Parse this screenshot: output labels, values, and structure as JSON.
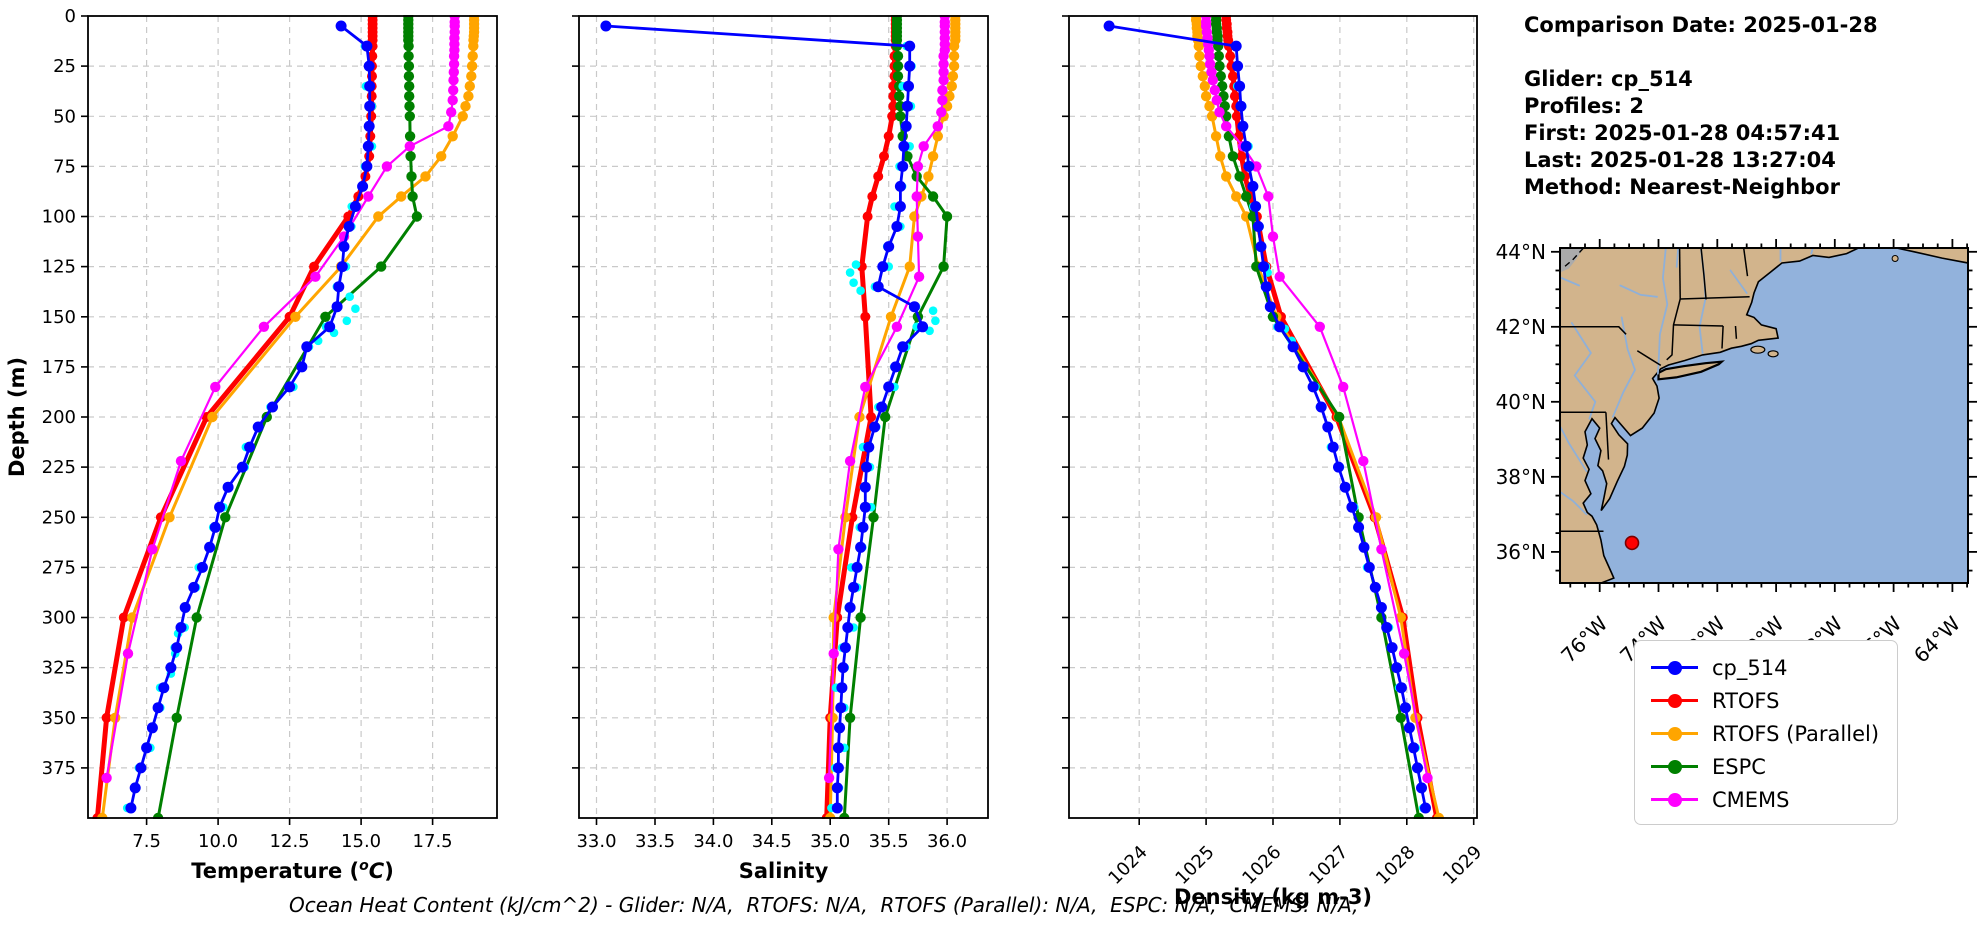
{
  "info_panel": {
    "lines": [
      "Comparison Date: 2025-01-28",
      "",
      "Glider: cp_514",
      "Profiles: 2",
      "First: 2025-01-28 04:57:41",
      "Last: 2025-01-28 13:27:04",
      "Method: Nearest-Neighbor"
    ]
  },
  "legend": {
    "items": [
      {
        "label": "cp_514",
        "color": "#0000ff"
      },
      {
        "label": "RTOFS",
        "color": "#ff0000"
      },
      {
        "label": "RTOFS (Parallel)",
        "color": "#ffa500"
      },
      {
        "label": "ESPC",
        "color": "#008000"
      },
      {
        "label": "CMEMS",
        "color": "#ff00ff"
      }
    ]
  },
  "footer": {
    "text": "Ocean Heat Content (kJ/cm^2) - Glider: N/A,  RTOFS: N/A,  RTOFS (Parallel): N/A,  ESPC: N/A,  CMEMS: N/A,"
  },
  "map": {
    "lat_ticks": [
      {
        "value": 44,
        "label": "44°N"
      },
      {
        "value": 42,
        "label": "42°N"
      },
      {
        "value": 40,
        "label": "40°N"
      },
      {
        "value": 38,
        "label": "38°N"
      },
      {
        "value": 36,
        "label": "36°N"
      }
    ],
    "lon_ticks": [
      {
        "value": -76,
        "label": "76°W"
      },
      {
        "value": -74,
        "label": "74°W"
      },
      {
        "value": -72,
        "label": "72°W"
      },
      {
        "value": -70,
        "label": "70°W"
      },
      {
        "value": -68,
        "label": "68°W"
      },
      {
        "value": -66,
        "label": "66°W"
      },
      {
        "value": -64,
        "label": "64°W"
      }
    ],
    "marker": {
      "lon": -74.9,
      "lat": 36.24,
      "color": "#ff0000",
      "edge": "#7a0000"
    },
    "colors": {
      "ocean": "#92b2dc",
      "land": "#d2b48c",
      "lake_gray": "#ababab",
      "river": "#8fb0d8",
      "coast": "#000000"
    }
  },
  "chart_data": {
    "type": "line",
    "grid": true,
    "depth_axis": {
      "label": "Depth (m)",
      "lim": [
        0,
        400
      ],
      "ticks": [
        0,
        25,
        50,
        75,
        100,
        125,
        150,
        175,
        200,
        225,
        250,
        275,
        300,
        325,
        350,
        375
      ],
      "tick_labels": [
        "0",
        "25",
        "50",
        "75",
        "100",
        "125",
        "150",
        "175",
        "200",
        "225",
        "250",
        "275",
        "300",
        "325",
        "350",
        "375"
      ]
    },
    "panels": [
      {
        "key": "temperature",
        "xlabel": "Temperature (°C)",
        "xlabel_parts": {
          "pre": "Temperature (",
          "sup": "o",
          "italic": "C",
          "post": ")"
        },
        "xlim": [
          5.45,
          19.75
        ],
        "xticks": [
          7.5,
          10,
          12.5,
          15,
          17.5
        ],
        "xtick_labels": [
          "7.5",
          "10.0",
          "12.5",
          "15.0",
          "17.5"
        ]
      },
      {
        "key": "salinity",
        "xlabel": "Salinity",
        "xlim": [
          32.85,
          36.35
        ],
        "xticks": [
          33,
          33.5,
          34,
          34.5,
          35,
          35.5,
          36
        ],
        "xtick_labels": [
          "33.0",
          "33.5",
          "34.0",
          "34.5",
          "35.0",
          "35.5",
          "36.0"
        ]
      },
      {
        "key": "density",
        "xlabel": "Density (kg m-3)",
        "xlim": [
          1022.95,
          1029.05
        ],
        "xticks": [
          1024,
          1025,
          1026,
          1027,
          1028,
          1029
        ],
        "xtick_labels": [
          "1024",
          "1025",
          "1026",
          "1027",
          "1028",
          "1029"
        ],
        "rotate_xticklabels": 45
      }
    ],
    "series_order": [
      "RTOFS",
      "RTOFS (Parallel)",
      "ESPC",
      "CMEMS",
      "cp_514 raw profiles",
      "cp_514"
    ],
    "series": [
      {
        "name": "cp_514",
        "color": "#0000ff",
        "line_width": 2.8,
        "marker_size": 5.5,
        "depths": [
          5,
          15,
          25,
          35,
          45,
          55,
          65,
          75,
          85,
          95,
          105,
          115,
          125,
          135,
          145,
          155,
          165,
          175,
          185,
          195,
          205,
          215,
          225,
          235,
          245,
          255,
          265,
          275,
          285,
          295,
          305,
          315,
          325,
          335,
          345,
          355,
          365,
          375,
          385,
          395
        ],
        "temperature": [
          14.3,
          15.2,
          15.28,
          15.3,
          15.3,
          15.28,
          15.25,
          15.2,
          15.05,
          14.8,
          14.58,
          14.4,
          14.34,
          14.22,
          14.16,
          13.9,
          13.1,
          12.93,
          12.5,
          11.9,
          11.4,
          11.1,
          10.85,
          10.35,
          10.05,
          9.9,
          9.7,
          9.45,
          9.15,
          8.85,
          8.7,
          8.55,
          8.35,
          8.1,
          7.9,
          7.7,
          7.5,
          7.3,
          7.1,
          6.95
        ],
        "salinity": [
          33.08,
          35.68,
          35.68,
          35.67,
          35.66,
          35.65,
          35.63,
          35.62,
          35.6,
          35.6,
          35.57,
          35.5,
          35.45,
          35.41,
          35.72,
          35.79,
          35.62,
          35.56,
          35.5,
          35.44,
          35.38,
          35.33,
          35.31,
          35.3,
          35.3,
          35.28,
          35.26,
          35.23,
          35.2,
          35.17,
          35.15,
          35.13,
          35.11,
          35.1,
          35.09,
          35.08,
          35.07,
          35.07,
          35.06,
          35.06
        ],
        "density": [
          1023.55,
          1025.45,
          1025.47,
          1025.5,
          1025.52,
          1025.55,
          1025.6,
          1025.64,
          1025.7,
          1025.74,
          1025.78,
          1025.82,
          1025.86,
          1025.9,
          1025.96,
          1026.1,
          1026.3,
          1026.45,
          1026.6,
          1026.72,
          1026.82,
          1026.9,
          1026.98,
          1027.08,
          1027.18,
          1027.28,
          1027.36,
          1027.44,
          1027.53,
          1027.62,
          1027.7,
          1027.78,
          1027.85,
          1027.92,
          1027.98,
          1028.04,
          1028.1,
          1028.16,
          1028.22,
          1028.28
        ]
      },
      {
        "name": "RTOFS",
        "color": "#ff0000",
        "line_width": 5,
        "marker_size": 5,
        "depths": [
          0,
          2,
          4,
          6,
          8,
          10,
          12,
          15,
          20,
          25,
          30,
          35,
          40,
          45,
          50,
          60,
          70,
          80,
          90,
          100,
          125,
          150,
          200,
          250,
          300,
          350,
          400
        ],
        "temperature": [
          15.4,
          15.4,
          15.4,
          15.4,
          15.4,
          15.4,
          15.4,
          15.4,
          15.39,
          15.38,
          15.38,
          15.37,
          15.37,
          15.36,
          15.35,
          15.32,
          15.28,
          15.15,
          14.9,
          14.55,
          13.35,
          12.5,
          9.6,
          8.0,
          6.7,
          6.1,
          5.78
        ],
        "salinity": [
          35.56,
          35.56,
          35.56,
          35.56,
          35.56,
          35.56,
          35.56,
          35.56,
          35.55,
          35.55,
          35.55,
          35.54,
          35.54,
          35.54,
          35.53,
          35.5,
          35.46,
          35.41,
          35.36,
          35.32,
          35.27,
          35.3,
          35.35,
          35.19,
          35.06,
          35.0,
          34.97
        ],
        "density": [
          1025.3,
          1025.3,
          1025.31,
          1025.31,
          1025.32,
          1025.32,
          1025.33,
          1025.34,
          1025.36,
          1025.38,
          1025.4,
          1025.42,
          1025.43,
          1025.45,
          1025.46,
          1025.49,
          1025.53,
          1025.58,
          1025.66,
          1025.76,
          1025.9,
          1026.12,
          1026.95,
          1027.52,
          1027.94,
          1028.16,
          1028.45
        ]
      },
      {
        "name": "RTOFS (Parallel)",
        "color": "#ffa500",
        "line_width": 3,
        "marker_size": 5.2,
        "depths": [
          0,
          2,
          4,
          6,
          8,
          10,
          12,
          15,
          20,
          25,
          30,
          35,
          40,
          45,
          50,
          60,
          70,
          80,
          90,
          100,
          125,
          150,
          200,
          250,
          300,
          350,
          400
        ],
        "temperature": [
          18.95,
          18.95,
          18.95,
          18.95,
          18.95,
          18.94,
          18.93,
          18.92,
          18.9,
          18.88,
          18.85,
          18.8,
          18.75,
          18.65,
          18.55,
          18.2,
          17.8,
          17.25,
          16.4,
          15.6,
          14.3,
          12.7,
          9.8,
          8.3,
          7.0,
          6.4,
          5.95
        ],
        "salinity": [
          36.07,
          36.07,
          36.07,
          36.07,
          36.07,
          36.07,
          36.07,
          36.06,
          36.06,
          36.06,
          36.05,
          36.04,
          36.02,
          36.0,
          35.97,
          35.92,
          35.88,
          35.84,
          35.78,
          35.72,
          35.68,
          35.52,
          35.25,
          35.13,
          35.03,
          35.02,
          35.0
        ],
        "density": [
          1024.85,
          1024.85,
          1024.86,
          1024.86,
          1024.87,
          1024.87,
          1024.88,
          1024.89,
          1024.9,
          1024.92,
          1024.95,
          1024.98,
          1025.0,
          1025.05,
          1025.09,
          1025.15,
          1025.21,
          1025.3,
          1025.45,
          1025.6,
          1025.78,
          1026.05,
          1026.98,
          1027.54,
          1027.91,
          1028.13,
          1028.48
        ]
      },
      {
        "name": "ESPC",
        "color": "#008000",
        "line_width": 3,
        "marker_size": 5.2,
        "depths": [
          0,
          2,
          4,
          6,
          8,
          10,
          12,
          15,
          20,
          25,
          30,
          35,
          40,
          45,
          50,
          60,
          70,
          80,
          90,
          100,
          125,
          150,
          200,
          250,
          300,
          350,
          400
        ],
        "temperature": [
          16.65,
          16.65,
          16.65,
          16.65,
          16.65,
          16.65,
          16.65,
          16.66,
          16.66,
          16.67,
          16.67,
          16.68,
          16.68,
          16.69,
          16.7,
          16.71,
          16.73,
          16.76,
          16.8,
          16.95,
          15.7,
          13.75,
          11.7,
          10.25,
          9.25,
          8.55,
          7.9
        ],
        "salinity": [
          35.57,
          35.57,
          35.57,
          35.57,
          35.57,
          35.57,
          35.57,
          35.57,
          35.58,
          35.58,
          35.58,
          35.59,
          35.59,
          35.6,
          35.6,
          35.62,
          35.66,
          35.74,
          35.88,
          36.0,
          35.97,
          35.75,
          35.47,
          35.37,
          35.26,
          35.17,
          35.12
        ],
        "density": [
          1025.15,
          1025.15,
          1025.15,
          1025.16,
          1025.16,
          1025.17,
          1025.17,
          1025.18,
          1025.19,
          1025.2,
          1025.22,
          1025.24,
          1025.26,
          1025.28,
          1025.3,
          1025.34,
          1025.4,
          1025.5,
          1025.6,
          1025.7,
          1025.75,
          1026.0,
          1026.99,
          1027.28,
          1027.62,
          1027.91,
          1028.18
        ]
      },
      {
        "name": "CMEMS",
        "color": "#ff00ff",
        "line_width": 2.2,
        "marker_size": 5.2,
        "depths": [
          0,
          3,
          5,
          8,
          11,
          14,
          17,
          20,
          24,
          28,
          32,
          37,
          42,
          48,
          55,
          65,
          75,
          90,
          110,
          130,
          155,
          185,
          222,
          266,
          318,
          380
        ],
        "temperature": [
          18.27,
          18.27,
          18.27,
          18.27,
          18.26,
          18.26,
          18.26,
          18.25,
          18.25,
          18.24,
          18.23,
          18.22,
          18.2,
          18.15,
          18.05,
          16.7,
          15.9,
          15.25,
          14.4,
          13.4,
          11.6,
          9.9,
          8.7,
          7.7,
          6.85,
          6.1
        ],
        "salinity": [
          35.98,
          35.98,
          35.98,
          35.98,
          35.98,
          35.98,
          35.98,
          35.97,
          35.97,
          35.97,
          35.97,
          35.96,
          35.96,
          35.95,
          35.92,
          35.8,
          35.75,
          35.74,
          35.75,
          35.76,
          35.57,
          35.3,
          35.17,
          35.07,
          35.03,
          34.99
        ],
        "density": [
          1025.0,
          1025.0,
          1025.0,
          1025.01,
          1025.02,
          1025.03,
          1025.04,
          1025.05,
          1025.06,
          1025.08,
          1025.1,
          1025.13,
          1025.16,
          1025.2,
          1025.3,
          1025.55,
          1025.75,
          1025.93,
          1026.0,
          1026.1,
          1026.7,
          1027.05,
          1027.35,
          1027.62,
          1027.96,
          1028.31
        ]
      },
      {
        "name": "cp_514 raw profiles",
        "color": "#00ffff",
        "line": false,
        "marker_size": 4.3,
        "base": "cp_514",
        "skip_first": 1,
        "jitter": {
          "temperature": 0.13,
          "salinity": 0.05,
          "density": 0.035
        },
        "extra_points": {
          "temperature": [
            [
              14.6,
              140
            ],
            [
              14.8,
              146
            ],
            [
              14.5,
              152
            ],
            [
              14.05,
              158
            ],
            [
              13.5,
              162
            ],
            [
              8.6,
              308
            ],
            [
              8.5,
              318
            ],
            [
              8.35,
              328
            ]
          ],
          "salinity": [
            [
              35.22,
              124
            ],
            [
              35.17,
              128
            ],
            [
              35.2,
              133
            ],
            [
              35.26,
              137
            ],
            [
              35.88,
              147
            ],
            [
              35.9,
              152
            ],
            [
              35.85,
              157
            ]
          ],
          "density": [
            [
              1026.18,
              156
            ],
            [
              1026.28,
              162
            ],
            [
              1025.92,
              128
            ]
          ]
        }
      }
    ]
  }
}
